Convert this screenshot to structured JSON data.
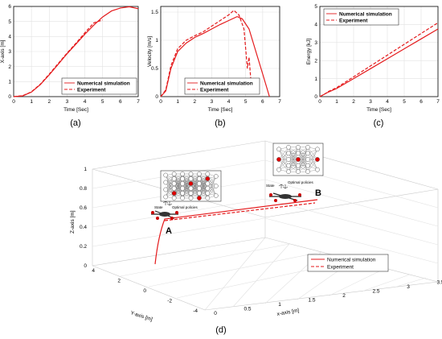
{
  "chart_data": [
    {
      "type": "line",
      "panel_label": "(a)",
      "xlabel": "Time [Sec]",
      "ylabel": "X-axis [m]",
      "xlim": [
        0,
        7
      ],
      "ylim": [
        0,
        6
      ],
      "xticks": [
        "0",
        "1",
        "2",
        "3",
        "4",
        "5",
        "6",
        "7"
      ],
      "yticks": [
        "0",
        "1",
        "2",
        "3",
        "4",
        "5",
        "6"
      ],
      "legend_position": "bottom-right",
      "series": [
        {
          "name": "Numerical simulation",
          "style": "solid",
          "x": [
            0,
            0.5,
            1,
            1.5,
            2,
            2.5,
            3,
            3.5,
            4,
            4.5,
            5,
            5.5,
            6,
            6.5,
            7
          ],
          "y": [
            0,
            0.05,
            0.3,
            0.8,
            1.45,
            2.15,
            2.85,
            3.5,
            4.15,
            4.75,
            5.3,
            5.7,
            5.9,
            5.98,
            5.85
          ]
        },
        {
          "name": "Experiment",
          "style": "dashed",
          "x": [
            0,
            0.5,
            1,
            1.5,
            2,
            2.5,
            3,
            3.5,
            4,
            4.5,
            5
          ],
          "y": [
            0,
            0.06,
            0.32,
            0.83,
            1.5,
            2.2,
            2.9,
            3.55,
            4.25,
            4.9,
            5.1
          ]
        }
      ]
    },
    {
      "type": "line",
      "panel_label": "(b)",
      "xlabel": "Time [Sec]",
      "ylabel": "Velocity [m/s]",
      "xlim": [
        0,
        7
      ],
      "ylim": [
        0,
        1.6
      ],
      "xticks": [
        "0",
        "1",
        "2",
        "3",
        "4",
        "5",
        "6",
        "7"
      ],
      "yticks": [
        "0",
        "0.5",
        "1",
        "1.5"
      ],
      "ytick_values": [
        0,
        0.5,
        1,
        1.5
      ],
      "legend_position": "bottom-right",
      "series": [
        {
          "name": "Numerical simulation",
          "style": "solid",
          "x": [
            0,
            0.3,
            0.6,
            1,
            1.5,
            2,
            2.5,
            3,
            3.5,
            4,
            4.5,
            4.8,
            5.2,
            5.6,
            6,
            6.4
          ],
          "y": [
            0,
            0.1,
            0.5,
            0.8,
            0.95,
            1.05,
            1.12,
            1.2,
            1.28,
            1.35,
            1.42,
            1.38,
            1.2,
            0.8,
            0.4,
            0
          ]
        },
        {
          "name": "Experiment",
          "style": "dashed",
          "x": [
            0,
            0.3,
            0.6,
            1,
            1.5,
            2,
            2.5,
            3,
            3.5,
            4,
            4.3,
            4.6,
            4.9,
            5.1,
            5.2,
            5.3
          ],
          "y": [
            0,
            0.12,
            0.55,
            0.85,
            1.0,
            1.08,
            1.15,
            1.25,
            1.35,
            1.45,
            1.53,
            1.45,
            1.2,
            0.5,
            0.7,
            0.3
          ]
        }
      ]
    },
    {
      "type": "line",
      "panel_label": "(c)",
      "xlabel": "Time [Sec]",
      "ylabel": "Energy [kJ]",
      "xlim": [
        0,
        7
      ],
      "ylim": [
        0,
        5
      ],
      "xticks": [
        "0",
        "1",
        "2",
        "3",
        "4",
        "5",
        "6",
        "7"
      ],
      "yticks": [
        "0",
        "1",
        "2",
        "3",
        "4",
        "5"
      ],
      "legend_position": "top-left",
      "series": [
        {
          "name": "Numerical simulation",
          "style": "solid",
          "x": [
            0,
            0.3,
            0.5,
            1,
            2,
            3,
            4,
            5,
            6,
            7
          ],
          "y": [
            0,
            0.15,
            0.25,
            0.45,
            1.0,
            1.55,
            2.1,
            2.65,
            3.2,
            3.75
          ]
        },
        {
          "name": "Experiment",
          "style": "dashed",
          "x": [
            0,
            0.3,
            0.5,
            1,
            2,
            3,
            4,
            5,
            6,
            7
          ],
          "y": [
            0,
            0.15,
            0.28,
            0.5,
            1.1,
            1.7,
            2.3,
            2.9,
            3.5,
            4.1
          ]
        }
      ]
    },
    {
      "type": "line",
      "panel_label": "(d)",
      "xlabel": "x-axis [m]",
      "ylabel": "Y-axis [m]",
      "zlabel": "Z-axis [m]",
      "xticks": [
        "0",
        "0.5",
        "1",
        "1.5",
        "2",
        "2.5",
        "3",
        "3.5"
      ],
      "yticks": [
        "4",
        "2",
        "0",
        "-2",
        "-4"
      ],
      "zticks": [
        "0",
        "0.2",
        "0.4",
        "0.6",
        "0.8",
        "1"
      ],
      "point_labels": [
        "A",
        "B"
      ],
      "annotations": [
        "State",
        "Optimal policies"
      ],
      "legend_position": "bottom-right",
      "series": [
        {
          "name": "Numerical simulation",
          "style": "solid"
        },
        {
          "name": "Experiment",
          "style": "dashed"
        }
      ]
    }
  ]
}
